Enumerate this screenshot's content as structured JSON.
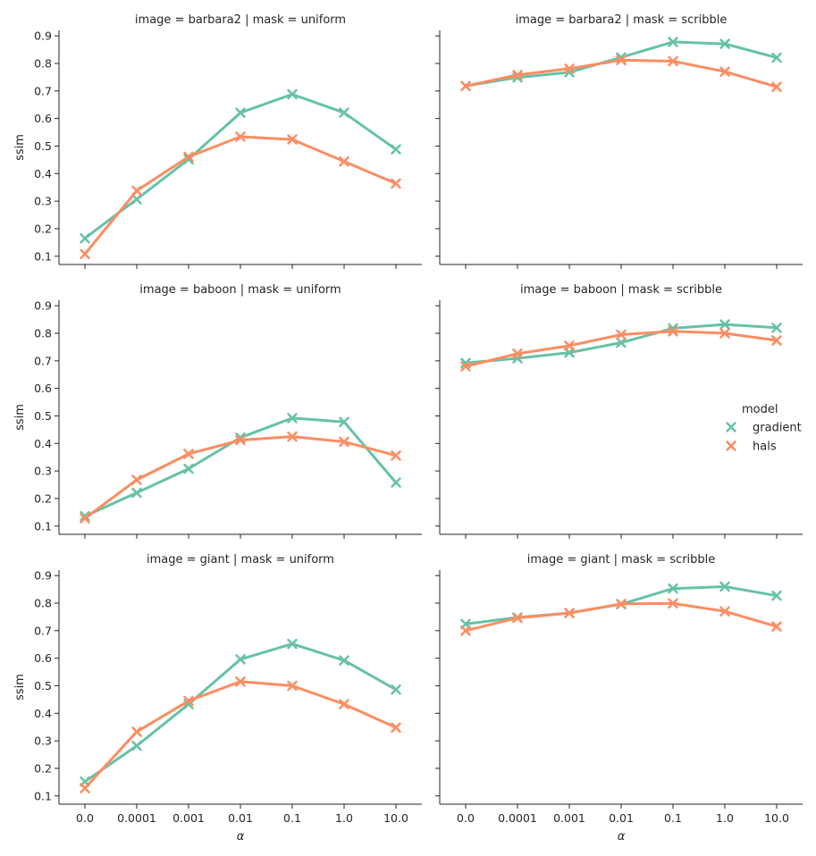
{
  "chart_data": {
    "type": "line",
    "categories": [
      "0.0",
      "0.0001",
      "0.001",
      "0.01",
      "0.1",
      "1.0",
      "10.0"
    ],
    "ylim": [
      0.07,
      0.92
    ],
    "yticks": [
      "0.1",
      "0.2",
      "0.3",
      "0.4",
      "0.5",
      "0.6",
      "0.7",
      "0.8",
      "0.9"
    ],
    "ylabel": "ssim",
    "xlabel": "α",
    "marker": "x",
    "legend": {
      "title": "model",
      "entries": [
        "gradient",
        "hals"
      ],
      "placement": "right"
    },
    "colors": {
      "gradient": "#66c2a5",
      "hals": "#fc8d62"
    },
    "panels": [
      {
        "title": "image = barbara2 | mask = uniform",
        "series": [
          {
            "name": "gradient",
            "values": [
              0.165,
              0.307,
              0.452,
              0.621,
              0.688,
              0.621,
              0.488
            ]
          },
          {
            "name": "hals",
            "values": [
              0.108,
              0.338,
              0.461,
              0.534,
              0.524,
              0.444,
              0.364
            ]
          }
        ]
      },
      {
        "title": "image = barbara2 | mask = scribble",
        "series": [
          {
            "name": "gradient",
            "values": [
              0.718,
              0.749,
              0.768,
              0.822,
              0.878,
              0.871,
              0.821
            ]
          },
          {
            "name": "hals",
            "values": [
              0.718,
              0.758,
              0.781,
              0.812,
              0.808,
              0.77,
              0.715
            ]
          }
        ]
      },
      {
        "title": "image = baboon | mask = uniform",
        "series": [
          {
            "name": "gradient",
            "values": [
              0.136,
              0.221,
              0.308,
              0.421,
              0.492,
              0.478,
              0.258
            ]
          },
          {
            "name": "hals",
            "values": [
              0.128,
              0.268,
              0.362,
              0.412,
              0.425,
              0.406,
              0.356
            ]
          }
        ]
      },
      {
        "title": "image = baboon | mask = scribble",
        "series": [
          {
            "name": "gradient",
            "values": [
              0.692,
              0.709,
              0.73,
              0.766,
              0.818,
              0.832,
              0.82
            ]
          },
          {
            "name": "hals",
            "values": [
              0.68,
              0.726,
              0.755,
              0.795,
              0.807,
              0.8,
              0.774
            ]
          }
        ]
      },
      {
        "title": "image = giant | mask = uniform",
        "series": [
          {
            "name": "gradient",
            "values": [
              0.152,
              0.282,
              0.433,
              0.596,
              0.652,
              0.592,
              0.486
            ]
          },
          {
            "name": "hals",
            "values": [
              0.128,
              0.333,
              0.445,
              0.515,
              0.5,
              0.433,
              0.348
            ]
          }
        ]
      },
      {
        "title": "image = giant | mask = scribble",
        "series": [
          {
            "name": "gradient",
            "values": [
              0.724,
              0.748,
              0.764,
              0.796,
              0.853,
              0.86,
              0.827
            ]
          },
          {
            "name": "hals",
            "values": [
              0.7,
              0.746,
              0.764,
              0.797,
              0.799,
              0.77,
              0.715
            ]
          }
        ]
      }
    ]
  }
}
